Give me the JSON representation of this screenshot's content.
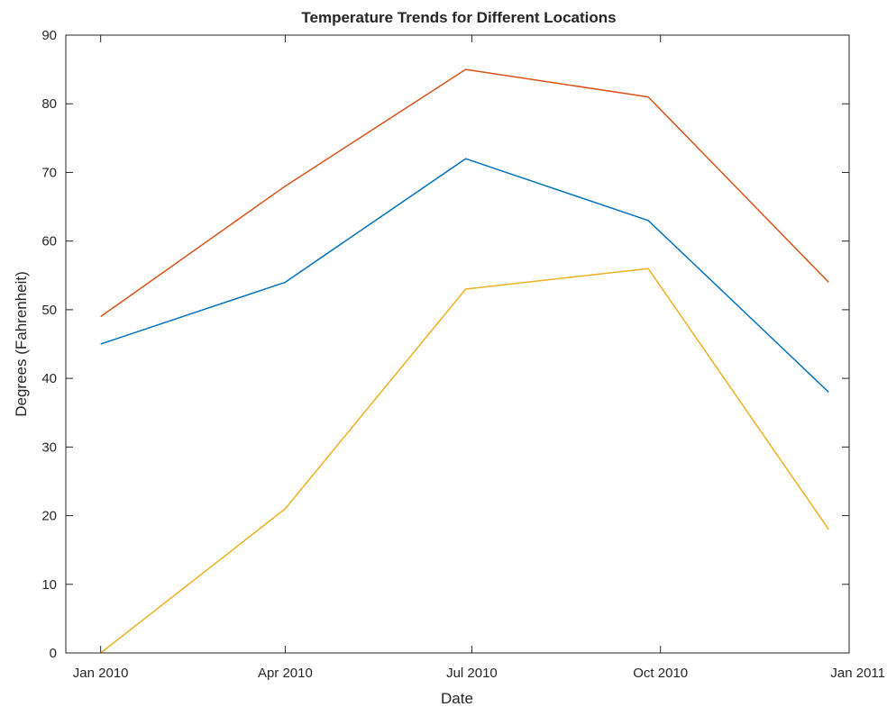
{
  "chart_data": {
    "type": "line",
    "title": "Temperature Trends for Different Locations",
    "xlabel": "Date",
    "ylabel": "Degrees (Fahrenheit)",
    "x_tick_labels": [
      "Jan 2010",
      "Apr 2010",
      "Jul 2010",
      "Oct 2010",
      "Jan 2011"
    ],
    "y_ticks": [
      0,
      10,
      20,
      30,
      40,
      50,
      60,
      70,
      80,
      90
    ],
    "xlim": [
      "2009-12-15",
      "2011-01-01"
    ],
    "ylim": [
      0,
      90
    ],
    "grid": false,
    "x": [
      "2010-01-01",
      "2010-04-01",
      "2010-06-28",
      "2010-09-25",
      "2010-12-22"
    ],
    "series": [
      {
        "color": "#0072BD",
        "values": [
          45,
          54,
          72,
          63,
          38
        ]
      },
      {
        "color": "#D95319",
        "values": [
          49,
          68,
          85,
          81,
          54
        ]
      },
      {
        "color": "#EDB120",
        "values": [
          0,
          21,
          53,
          56,
          18
        ]
      }
    ]
  }
}
